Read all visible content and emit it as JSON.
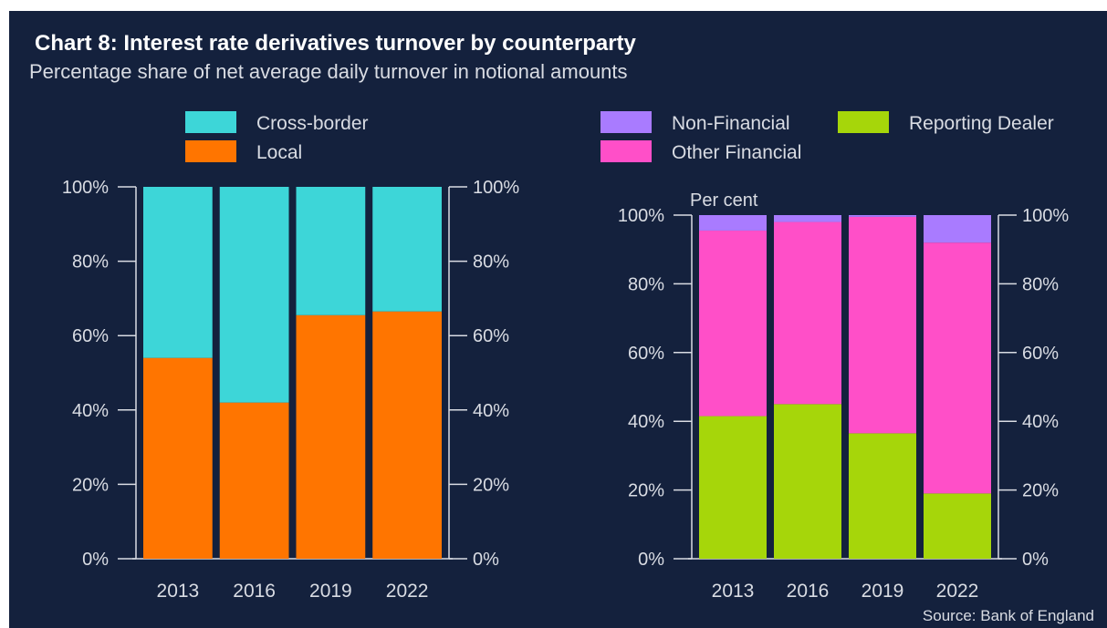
{
  "title": "Chart 8: Interest rate derivatives turnover by counterparty",
  "subtitle": "Percentage share of net average daily turnover in notional amounts",
  "source": "Source: Bank of England",
  "colors": {
    "background": "#14213d",
    "text": "#d9dce3",
    "cross_border": "#3dd6d8",
    "local": "#ff7500",
    "non_financial": "#a97bff",
    "other_financial": "#ff4fc8",
    "reporting_dealer": "#a6d60a"
  },
  "chart_data": [
    {
      "type": "bar",
      "stacked": true,
      "title": "",
      "ylabel": "",
      "categories": [
        "2013",
        "2016",
        "2019",
        "2022"
      ],
      "ylim": [
        0,
        100
      ],
      "yticks": [
        "0%",
        "20%",
        "40%",
        "60%",
        "80%",
        "100%"
      ],
      "legend": {
        "placement": "top",
        "entries": [
          "Cross-border",
          "Local"
        ]
      },
      "series": [
        {
          "name": "Local",
          "values": [
            54,
            42,
            65.5,
            66.5
          ],
          "color": "#ff7500"
        },
        {
          "name": "Cross-border",
          "values": [
            46,
            58,
            34.5,
            33.5
          ],
          "color": "#3dd6d8"
        }
      ]
    },
    {
      "type": "bar",
      "stacked": true,
      "title": "",
      "ylabel": "Per cent",
      "categories": [
        "2013",
        "2016",
        "2019",
        "2022"
      ],
      "ylim": [
        0,
        100
      ],
      "yticks": [
        "0%",
        "20%",
        "40%",
        "60%",
        "80%",
        "100%"
      ],
      "legend": {
        "placement": "top",
        "entries": [
          "Non-Financial",
          "Reporting Dealer",
          "Other Financial"
        ]
      },
      "series": [
        {
          "name": "Reporting Dealer",
          "values": [
            41.5,
            45,
            36.5,
            19
          ],
          "color": "#a6d60a"
        },
        {
          "name": "Other Financial",
          "values": [
            54,
            53,
            63,
            73
          ],
          "color": "#ff4fc8"
        },
        {
          "name": "Non-Financial",
          "values": [
            4.5,
            2,
            0.5,
            8
          ],
          "color": "#a97bff"
        }
      ]
    }
  ]
}
